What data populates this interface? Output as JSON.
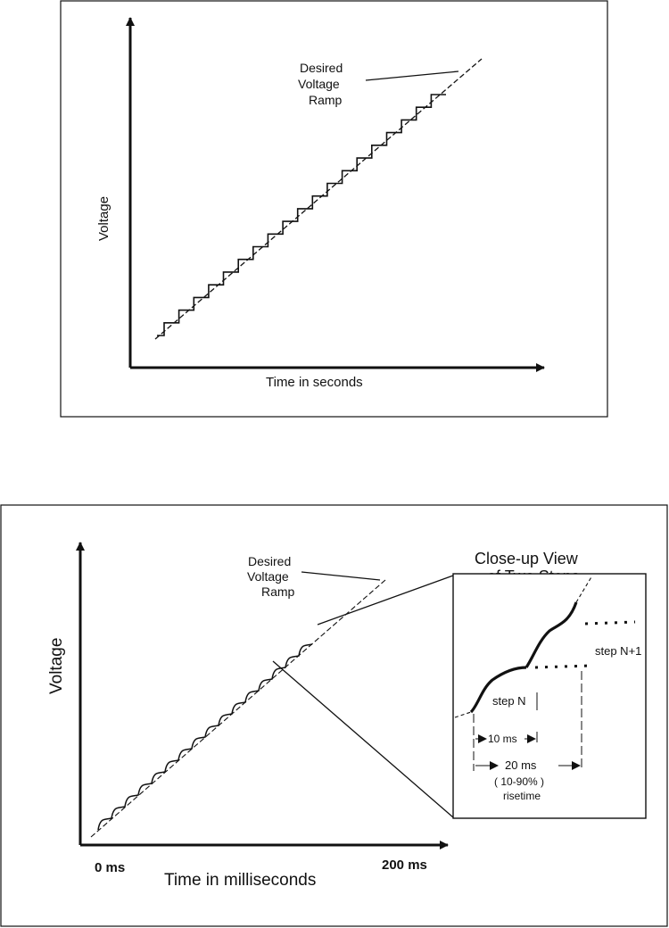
{
  "figure1": {
    "ramp_label_line1": "Desired",
    "ramp_label_line2": "Voltage",
    "ramp_label_line3": "Ramp",
    "ylabel": "Voltage",
    "xlabel": "Time in seconds",
    "step_count": 19
  },
  "figure2": {
    "ramp_label_line1": "Desired",
    "ramp_label_line2": "Voltage",
    "ramp_label_line3": "Ramp",
    "ylabel": "Voltage",
    "xlabel": "Time in milliseconds",
    "x_start_label": "0 ms",
    "x_end_label": "200 ms",
    "closeup": {
      "title_line1": "Close-up View",
      "title_line2": "of Two Steps",
      "step_n_label": "step N",
      "step_n1_label": "step N+1",
      "period_label": "10 ms",
      "risetime_line1": "20 ms",
      "risetime_line2": "( 10-90% )",
      "risetime_line3": "risetime"
    }
  }
}
